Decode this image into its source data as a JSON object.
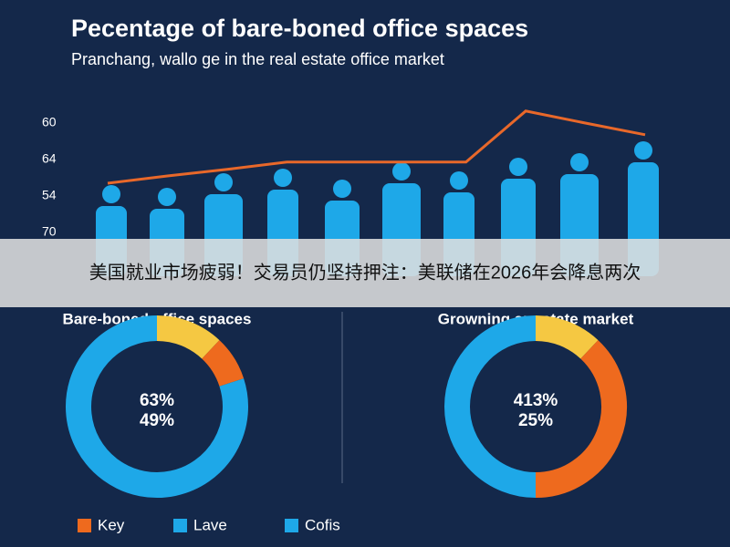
{
  "caption": "美国就业市场疲弱！交易员仍坚持押注：美联储在2026年会降息两次",
  "chart_data": [
    {
      "type": "line",
      "title": "Pecentage of bare-boned office spaces",
      "subtitle": "Pranchang, wallo ge in the real estate office market",
      "categories": [
        null,
        null,
        null,
        null,
        null,
        null,
        null,
        null,
        null,
        null
      ],
      "values": [
        1.35,
        1.55,
        1.73,
        1.93,
        1.93,
        1.93,
        1.93,
        3.33,
        3.0,
        2.68
      ],
      "color": "#e8682a",
      "ylim": [
        0,
        3.5
      ],
      "yticks": [
        {
          "value": 3,
          "label": "60"
        },
        {
          "value": 2,
          "label": "64"
        },
        {
          "value": 1,
          "label": "54"
        },
        {
          "value": 0,
          "label": "70"
        }
      ]
    },
    {
      "type": "pie",
      "title": "Bare-boned office spaces",
      "center_labels": [
        "63%",
        "49%"
      ],
      "values": [
        12,
        8,
        80
      ],
      "colors": [
        "#f5c842",
        "#ee6a1e",
        "#1ea8e8"
      ]
    },
    {
      "type": "pie",
      "title": "Growning ar estate market",
      "center_labels": [
        "413%",
        "25%"
      ],
      "values": [
        12,
        38,
        50
      ],
      "colors": [
        "#f5c842",
        "#ee6a1e",
        "#1ea8e8"
      ]
    }
  ],
  "legend": [
    {
      "label": "Key",
      "color": "#ee6a1e"
    },
    {
      "label": "Lave",
      "color": "#1ea8e8"
    },
    {
      "label": "Cofis",
      "color": "#1ea8e8"
    }
  ]
}
